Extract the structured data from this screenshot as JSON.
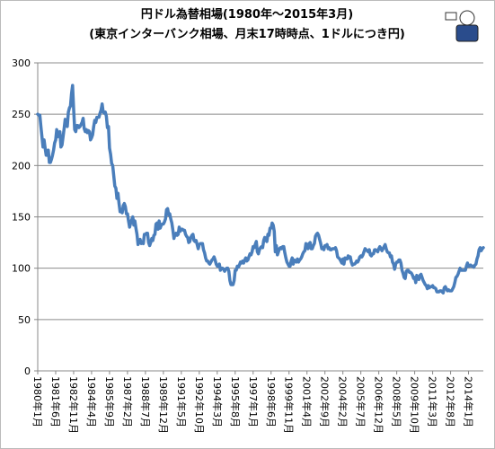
{
  "chart_data": {
    "type": "line",
    "title": "円ドル為替相場(1980年～2015年3月)",
    "subtitle": "(東京インターバンク相場、月末17時時点、1ドルにつき円)",
    "color": "#4a7ebb",
    "grid": true,
    "ylim": [
      0,
      300
    ],
    "yticks": [
      0,
      50,
      100,
      150,
      200,
      250,
      300
    ],
    "categories": [
      "1980年1月",
      null,
      null,
      null,
      null,
      null,
      null,
      null,
      null,
      null,
      null,
      null,
      null,
      null,
      null,
      null,
      null,
      "1981年6月",
      null,
      null,
      null,
      null,
      null,
      null,
      null,
      null,
      null,
      null,
      null,
      null,
      null,
      null,
      null,
      null,
      "1982年11月",
      null,
      null,
      null,
      null,
      null,
      null,
      null,
      null,
      null,
      null,
      null,
      null,
      null,
      null,
      null,
      null,
      "1984年4月",
      null,
      null,
      null,
      null,
      null,
      null,
      null,
      null,
      null,
      null,
      null,
      null,
      null,
      null,
      null,
      null,
      "1985年9月",
      null,
      null,
      null,
      null,
      null,
      null,
      null,
      null,
      null,
      null,
      null,
      null,
      null,
      null,
      null,
      null,
      "1987年2月",
      null,
      null,
      null,
      null,
      null,
      null,
      null,
      null,
      null,
      null,
      null,
      null,
      null,
      null,
      null,
      null,
      "1988年7月",
      null,
      null,
      null,
      null,
      null,
      null,
      null,
      null,
      null,
      null,
      null,
      null,
      null,
      null,
      null,
      null,
      "1989年12月",
      null,
      null,
      null,
      null,
      null,
      null,
      null,
      null,
      null,
      null,
      null,
      null,
      null,
      null,
      null,
      null,
      "1991年5月",
      null,
      null,
      null,
      null,
      null,
      null,
      null,
      null,
      null,
      null,
      null,
      null,
      null,
      null,
      null,
      null,
      "1992年10月",
      null,
      null,
      null,
      null,
      null,
      null,
      null,
      null,
      null,
      null,
      null,
      null,
      null,
      null,
      null,
      null,
      "1994年3月",
      null,
      null,
      null,
      null,
      null,
      null,
      null,
      null,
      null,
      null,
      null,
      null,
      null,
      null,
      null,
      null,
      "1995年8月",
      null,
      null,
      null,
      null,
      null,
      null,
      null,
      null,
      null,
      null,
      null,
      null,
      null,
      null,
      null,
      null,
      "1997年1月",
      null,
      null,
      null,
      null,
      null,
      null,
      null,
      null,
      null,
      null,
      null,
      null,
      null,
      null,
      null,
      null,
      "1998年6月",
      null,
      null,
      null,
      null,
      null,
      null,
      null,
      null,
      null,
      null,
      null,
      null,
      null,
      null,
      null,
      null,
      "1999年11月",
      null,
      null,
      null,
      null,
      null,
      null,
      null,
      null,
      null,
      null,
      null,
      null,
      null,
      null,
      null,
      null,
      "2001年4月",
      null,
      null,
      null,
      null,
      null,
      null,
      null,
      null,
      null,
      null,
      null,
      null,
      null,
      null,
      null,
      null,
      "2002年9月",
      null,
      null,
      null,
      null,
      null,
      null,
      null,
      null,
      null,
      null,
      null,
      null,
      null,
      null,
      null,
      null,
      "2004年2月",
      null,
      null,
      null,
      null,
      null,
      null,
      null,
      null,
      null,
      null,
      null,
      null,
      null,
      null,
      null,
      null,
      "2005年7月",
      null,
      null,
      null,
      null,
      null,
      null,
      null,
      null,
      null,
      null,
      null,
      null,
      null,
      null,
      null,
      null,
      "2006年12月",
      null,
      null,
      null,
      null,
      null,
      null,
      null,
      null,
      null,
      null,
      null,
      null,
      null,
      null,
      null,
      null,
      "2008年5月",
      null,
      null,
      null,
      null,
      null,
      null,
      null,
      null,
      null,
      null,
      null,
      null,
      null,
      null,
      null,
      null,
      "2009年10月",
      null,
      null,
      null,
      null,
      null,
      null,
      null,
      null,
      null,
      null,
      null,
      null,
      null,
      null,
      null,
      null,
      "2011年3月",
      null,
      null,
      null,
      null,
      null,
      null,
      null,
      null,
      null,
      null,
      null,
      null,
      null,
      null,
      null,
      null,
      "2012年8月",
      null,
      null,
      null,
      null,
      null,
      null,
      null,
      null,
      null,
      null,
      null,
      null,
      null,
      null,
      null,
      null,
      "2014年1月",
      null,
      null,
      null,
      null,
      null,
      null,
      null,
      null,
      null,
      null,
      null,
      null,
      null,
      null
    ],
    "values": [
      250,
      249,
      249,
      238,
      228,
      218,
      225,
      217,
      210,
      210,
      215,
      203,
      203,
      206,
      210,
      215,
      222,
      225,
      235,
      228,
      230,
      233,
      218,
      220,
      228,
      236,
      245,
      242,
      238,
      252,
      256,
      258,
      270,
      278,
      255,
      235,
      233,
      239,
      239,
      237,
      238,
      240,
      242,
      246,
      236,
      233,
      235,
      232,
      234,
      233,
      225,
      227,
      230,
      238,
      244,
      242,
      247,
      247,
      247,
      251,
      254,
      260,
      252,
      251,
      252,
      248,
      237,
      238,
      217,
      211,
      202,
      200,
      190,
      180,
      178,
      168,
      173,
      163,
      155,
      155,
      154,
      161,
      163,
      160,
      153,
      153,
      146,
      140,
      144,
      147,
      150,
      142,
      146,
      139,
      133,
      123,
      127,
      128,
      124,
      125,
      124,
      133,
      133,
      134,
      134,
      125,
      122,
      125,
      129,
      127,
      132,
      133,
      143,
      144,
      138,
      146,
      139,
      142,
      143,
      143,
      145,
      148,
      157,
      158,
      152,
      153,
      148,
      144,
      137,
      129,
      133,
      134,
      132,
      133,
      140,
      136,
      138,
      138,
      137,
      137,
      133,
      131,
      130,
      125,
      126,
      130,
      132,
      133,
      127,
      126,
      127,
      123,
      119,
      123,
      124,
      124,
      124,
      118,
      115,
      110,
      107,
      107,
      105,
      104,
      106,
      108,
      109,
      111,
      108,
      104,
      102,
      102,
      104,
      98,
      100,
      100,
      99,
      97,
      99,
      100,
      100,
      97,
      88,
      84,
      84,
      84,
      88,
      98,
      98,
      102,
      101,
      103,
      106,
      105,
      107,
      105,
      108,
      110,
      107,
      108,
      111,
      114,
      113,
      116,
      121,
      120,
      123,
      126,
      116,
      114,
      118,
      120,
      121,
      120,
      127,
      130,
      127,
      126,
      133,
      132,
      139,
      139,
      144,
      142,
      136,
      116,
      122,
      113,
      116,
      119,
      120,
      119,
      121,
      121,
      115,
      110,
      106,
      104,
      102,
      102,
      107,
      110,
      104,
      108,
      107,
      106,
      109,
      106,
      108,
      109,
      111,
      114,
      116,
      117,
      124,
      123,
      119,
      124,
      125,
      119,
      119,
      122,
      124,
      131,
      133,
      134,
      132,
      128,
      124,
      119,
      120,
      118,
      122,
      122,
      123,
      119,
      120,
      118,
      118,
      119,
      119,
      119,
      120,
      117,
      111,
      110,
      109,
      107,
      105,
      109,
      104,
      110,
      109,
      109,
      112,
      110,
      111,
      106,
      103,
      104,
      104,
      105,
      107,
      106,
      108,
      111,
      112,
      111,
      113,
      116,
      119,
      118,
      117,
      116,
      118,
      113,
      112,
      114,
      114,
      118,
      118,
      117,
      116,
      119,
      121,
      119,
      117,
      119,
      121,
      123,
      119,
      116,
      115,
      115,
      111,
      112,
      106,
      104,
      99,
      104,
      106,
      106,
      108,
      108,
      105,
      98,
      95,
      91,
      90,
      97,
      98,
      98,
      96,
      96,
      95,
      93,
      90,
      91,
      86,
      93,
      90,
      89,
      93,
      94,
      91,
      88,
      86,
      84,
      83,
      80,
      83,
      81,
      82,
      82,
      83,
      81,
      81,
      80,
      77,
      77,
      77,
      78,
      78,
      77,
      76,
      81,
      82,
      80,
      78,
      79,
      78,
      78,
      78,
      80,
      82,
      86,
      91,
      92,
      94,
      97,
      100,
      98,
      98,
      98,
      98,
      98,
      102,
      105,
      102,
      102,
      103,
      102,
      102,
      101,
      103,
      104,
      109,
      112,
      118,
      120,
      117,
      119,
      120
    ]
  }
}
